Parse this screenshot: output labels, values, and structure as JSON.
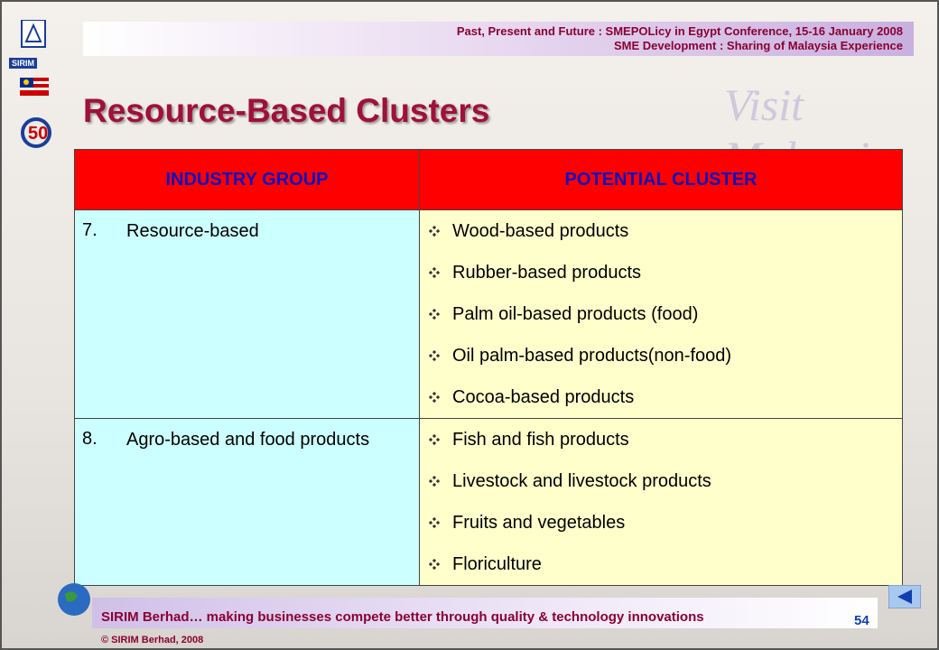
{
  "header": {
    "line1": "Past, Present and Future : SMEPOLicy in Egypt Conference, 15-16 January 2008",
    "line2": "SME Development : Sharing of Malaysia Experience"
  },
  "logo": "SIRIM",
  "watermark": "Visit Malaysia",
  "title": "Resource-Based Clusters",
  "table": {
    "headers": [
      "INDUSTRY GROUP",
      "POTENTIAL CLUSTER"
    ],
    "rows": [
      {
        "number": "7.",
        "group": "Resource-based",
        "clusters": [
          "Wood-based products",
          "Rubber-based products",
          "Palm oil-based products (food)",
          "Oil palm-based products(non-food)",
          "Cocoa-based products"
        ]
      },
      {
        "number": "8.",
        "group": "Agro-based and food products",
        "clusters": [
          "Fish and fish products",
          "Livestock and livestock products",
          "Fruits and vegetables",
          "Floriculture"
        ]
      }
    ]
  },
  "footer": {
    "tagline": "SIRIM Berhad… making businesses compete better through quality & technology innovations",
    "page": "54",
    "copyright": "© SIRIM Berhad, 2008"
  }
}
